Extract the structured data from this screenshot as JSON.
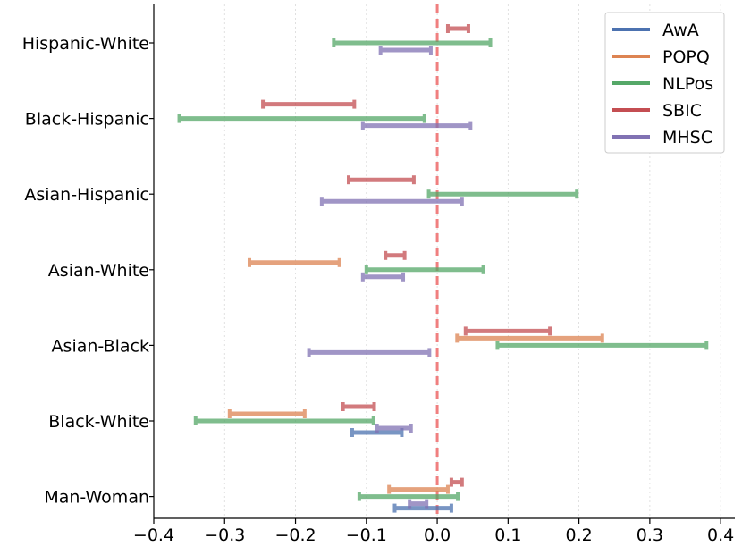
{
  "chart_data": {
    "type": "errorbar-interval",
    "title": "",
    "xlabel": "",
    "ylabel": "",
    "xlim": [
      -0.4,
      0.42
    ],
    "x_ticks": [
      -0.4,
      -0.3,
      -0.2,
      -0.1,
      0.0,
      0.1,
      0.2,
      0.3,
      0.4
    ],
    "x_tick_labels": [
      "−0.4",
      "−0.3",
      "−0.2",
      "−0.1",
      "0.0",
      "0.1",
      "0.2",
      "0.3",
      "0.4"
    ],
    "categories": [
      "Hispanic-White",
      "Black-Hispanic",
      "Asian-Hispanic",
      "Asian-White",
      "Asian-Black",
      "Black-White",
      "Man-Woman"
    ],
    "reference_line": {
      "x": 0.0,
      "style": "dashed",
      "color": "#f07f7f"
    },
    "grid": "vertical",
    "legend_position": "top-right",
    "series": [
      {
        "name": "AwA",
        "color": "#4c72b0",
        "intervals": {
          "Black-White": [
            -0.12,
            -0.05
          ],
          "Man-Woman": [
            -0.06,
            0.02
          ]
        }
      },
      {
        "name": "POPQ",
        "color": "#dd8452",
        "intervals": {
          "Asian-White": [
            -0.265,
            -0.138
          ],
          "Asian-Black": [
            0.028,
            0.233
          ],
          "Black-White": [
            -0.293,
            -0.187
          ],
          "Man-Woman": [
            -0.068,
            0.015
          ]
        }
      },
      {
        "name": "NLPos",
        "color": "#55a868",
        "intervals": {
          "Hispanic-White": [
            -0.146,
            0.075
          ],
          "Black-Hispanic": [
            -0.364,
            -0.018
          ],
          "Asian-Hispanic": [
            -0.012,
            0.197
          ],
          "Asian-White": [
            -0.1,
            0.065
          ],
          "Asian-Black": [
            0.085,
            0.38
          ],
          "Black-White": [
            -0.341,
            -0.09
          ],
          "Man-Woman": [
            -0.11,
            0.029
          ]
        }
      },
      {
        "name": "SBIC",
        "color": "#c44e52",
        "intervals": {
          "Hispanic-White": [
            0.015,
            0.044
          ],
          "Black-Hispanic": [
            -0.246,
            -0.117
          ],
          "Asian-Hispanic": [
            -0.125,
            -0.033
          ],
          "Asian-White": [
            -0.073,
            -0.046
          ],
          "Asian-Black": [
            0.04,
            0.159
          ],
          "Black-White": [
            -0.133,
            -0.089
          ],
          "Man-Woman": [
            0.02,
            0.035
          ]
        }
      },
      {
        "name": "MHSC",
        "color": "#8172b3",
        "intervals": {
          "Hispanic-White": [
            -0.08,
            -0.009
          ],
          "Black-Hispanic": [
            -0.105,
            0.047
          ],
          "Asian-Hispanic": [
            -0.163,
            0.035
          ],
          "Asian-White": [
            -0.105,
            -0.048
          ],
          "Asian-Black": [
            -0.181,
            -0.011
          ],
          "Black-White": [
            -0.085,
            -0.037
          ],
          "Man-Woman": [
            -0.039,
            -0.015
          ]
        }
      }
    ]
  }
}
